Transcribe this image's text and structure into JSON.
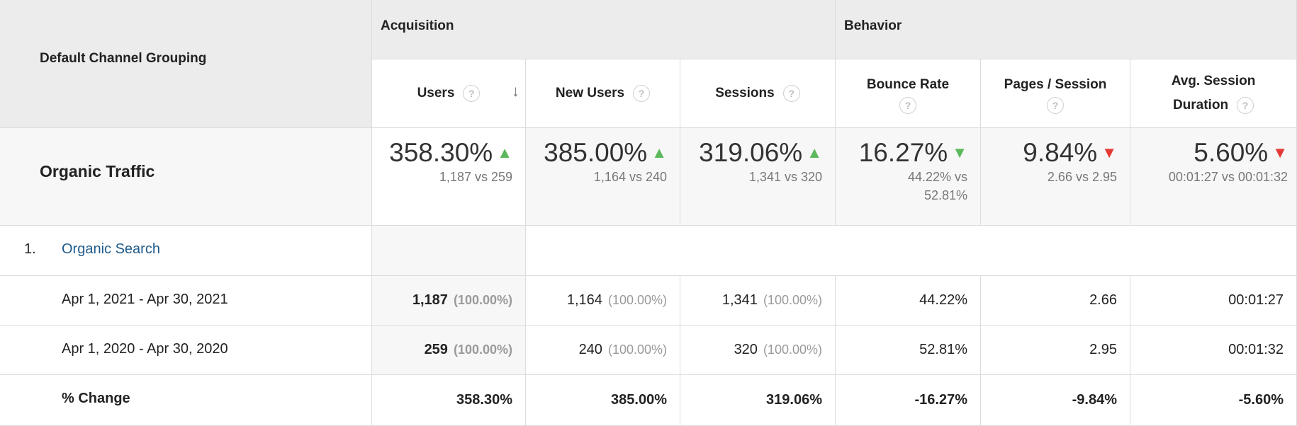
{
  "header": {
    "dimension_label": "Default Channel Grouping",
    "groups": {
      "acquisition": "Acquisition",
      "behavior": "Behavior"
    },
    "columns": [
      {
        "line1": "Users",
        "line2": ""
      },
      {
        "line1": "New Users",
        "line2": ""
      },
      {
        "line1": "Sessions",
        "line2": ""
      },
      {
        "line1": "Bounce Rate",
        "line2": ""
      },
      {
        "line1": "Pages / Session",
        "line2": ""
      },
      {
        "line1": "Avg. Session",
        "line2": "Duration"
      }
    ],
    "help_icon": "?",
    "sort_icon": "↓"
  },
  "summary": {
    "segment_label": "Organic Traffic",
    "metrics": [
      {
        "pct": "358.30%",
        "compare": "1,187 vs 259",
        "trend": "up"
      },
      {
        "pct": "385.00%",
        "compare": "1,164 vs 240",
        "trend": "up"
      },
      {
        "pct": "319.06%",
        "compare": "1,341 vs 320",
        "trend": "up"
      },
      {
        "pct": "16.27%",
        "compare_line1": "44.22% vs",
        "compare_line2": "52.81%",
        "trend": "down-good"
      },
      {
        "pct": "9.84%",
        "compare": "2.66 vs 2.95",
        "trend": "down-bad"
      },
      {
        "pct": "5.60%",
        "compare": "00:01:27 vs 00:01:32",
        "trend": "down-bad"
      }
    ]
  },
  "rows": {
    "channel": {
      "index": "1.",
      "name": "Organic Search"
    },
    "current": {
      "label": "Apr 1, 2021 - Apr 30, 2021",
      "users": "1,187",
      "users_pct": "(100.00%)",
      "new_users": "1,164",
      "new_users_pct": "(100.00%)",
      "sessions": "1,341",
      "sessions_pct": "(100.00%)",
      "bounce_rate": "44.22%",
      "pages_session": "2.66",
      "avg_duration": "00:01:27"
    },
    "previous": {
      "label": "Apr 1, 2020 - Apr 30, 2020",
      "users": "259",
      "users_pct": "(100.00%)",
      "new_users": "240",
      "new_users_pct": "(100.00%)",
      "sessions": "320",
      "sessions_pct": "(100.00%)",
      "bounce_rate": "52.81%",
      "pages_session": "2.95",
      "avg_duration": "00:01:32"
    },
    "change": {
      "label": "% Change",
      "users": "358.30%",
      "new_users": "385.00%",
      "sessions": "319.06%",
      "bounce_rate": "-16.27%",
      "pages_session": "-9.84%",
      "avg_duration": "-5.60%"
    }
  },
  "colors": {
    "header_bg": "#ececec",
    "summary_bg": "#f7f7f7",
    "positive_arrow": "#5cb85c",
    "negative_arrow": "#e53935",
    "link": "#1f5a8a"
  }
}
